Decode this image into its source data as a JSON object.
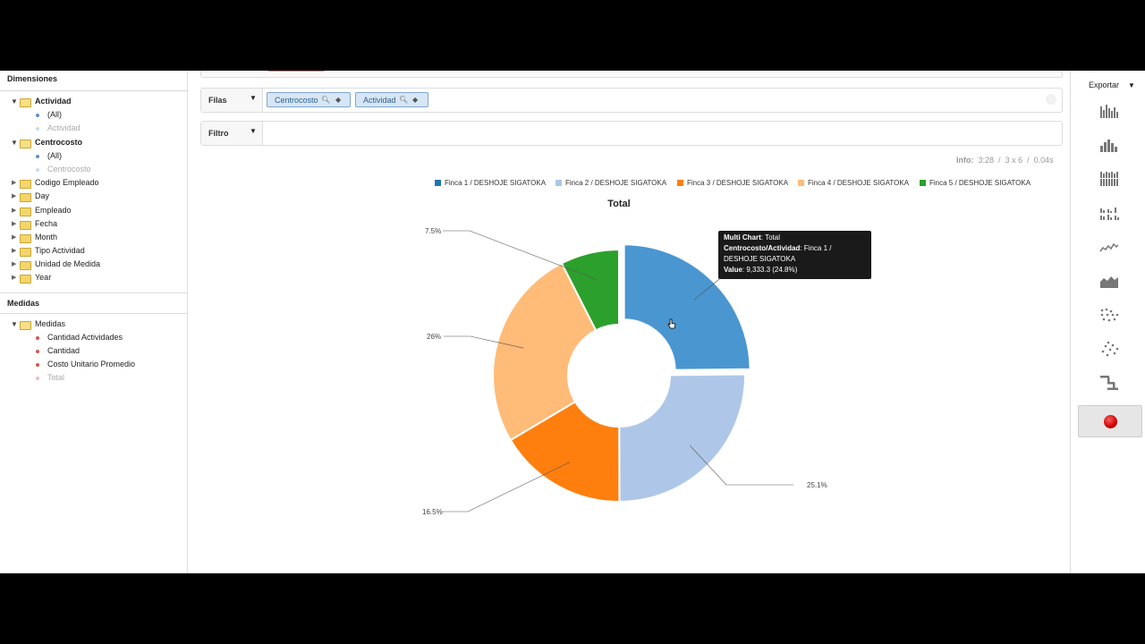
{
  "dimensions": {
    "title": "Dimensiones",
    "groups": [
      {
        "label": "Actividad",
        "children": [
          "(All)",
          "Actividad"
        ]
      },
      {
        "label": "Centrocosto",
        "children": [
          "(All)",
          "Centrocosto"
        ]
      }
    ],
    "items": [
      "Codigo Empleado",
      "Day",
      "Empleado",
      "Fecha",
      "Month",
      "Tipo Actividad",
      "Unidad de Medida",
      "Year"
    ]
  },
  "measures": {
    "title": "Medidas",
    "root": "Medidas",
    "items": [
      "Cantidad Actividades",
      "Cantidad",
      "Costo Unitario Promedio",
      "Total"
    ]
  },
  "rows_zone": {
    "label": "Filas",
    "chips": [
      "Centrocosto",
      "Actividad"
    ]
  },
  "filter_zone": {
    "label": "Filtro"
  },
  "info": {
    "label": "Info:",
    "time": "3:28",
    "size": "3 x 6",
    "duration": "0.04s"
  },
  "chart_data": {
    "type": "pie",
    "variant": "donut",
    "title": "Total",
    "legend_position": "top",
    "series": [
      {
        "name": "Finca 1 / DESHOJE SIGATOKA",
        "percent": 24.8,
        "label": "24.8%",
        "color": "#4a96d0"
      },
      {
        "name": "Finca 2 / DESHOJE SIGATOKA",
        "percent": 25.1,
        "label": "25.1%",
        "color": "#aec7e8"
      },
      {
        "name": "Finca 3 / DESHOJE SIGATOKA",
        "percent": 16.5,
        "label": "16.5%",
        "color": "#ff7f0e"
      },
      {
        "name": "Finca 4 / DESHOJE SIGATOKA",
        "percent": 26,
        "label": "26%",
        "color": "#ffbb78"
      },
      {
        "name": "Finca 5 / DESHOJE SIGATOKA",
        "percent": 7.5,
        "label": "7.5%",
        "color": "#2ca02c"
      }
    ],
    "highlighted": "Finca 1 / DESHOJE SIGATOKA"
  },
  "tooltip": {
    "line1_key": "Multi Chart",
    "line1_val": ": Total",
    "line2_key": "Centrocosto/Actividad",
    "line2_val": ": Finca 1 /",
    "line3": "DESHOJE SIGATOKA",
    "line4_key": "Value",
    "line4_val": ": 9,333.3 (24.8%)"
  },
  "toolbar": {
    "export_label": "Exportar",
    "chart_types": [
      "column-chart-icon",
      "histogram-chart-icon",
      "stacked-column-icon",
      "grouped-column-icon",
      "line-chart-icon",
      "area-chart-icon",
      "dot-plot-icon",
      "scatter-plot-icon",
      "step-chart-icon",
      "pie-chart-icon"
    ],
    "active": "pie-chart-icon"
  }
}
